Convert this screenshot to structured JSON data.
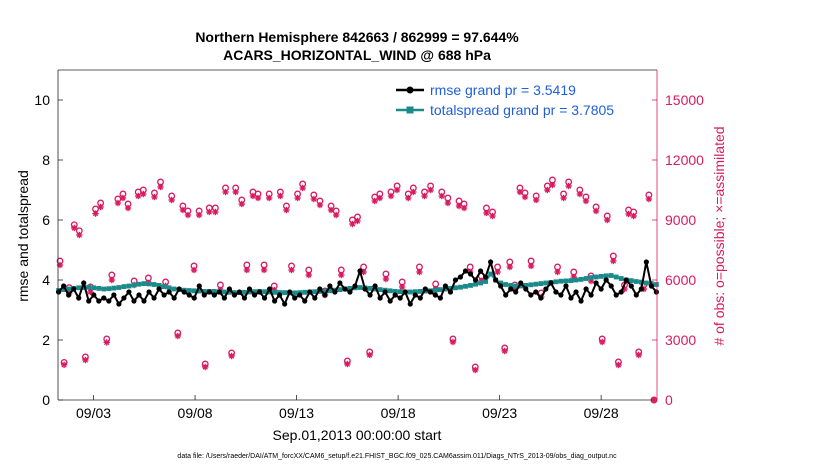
{
  "chart_data": {
    "type": "line",
    "title": "Northern Hemisphere 842663 / 862999 = 97.644%",
    "subtitle": "ACARS_HORIZONTAL_WIND @ 688 hPa",
    "xlabel": "Sep.01,2013 00:00:00 start",
    "ylabel_left": "rmse and totalspread",
    "ylabel_right": "# of obs: o=possible; ×=assimilated",
    "footer": "data file: /Users/raeder/DAI/ATM_forcXX/CAM6_setup/f.e21.FHIST_BGC.f09_025.CAM6assim.011/Diags_NTrS_2013-09/obs_diag_output.nc",
    "x_ticks": [
      {
        "x": 3,
        "label": "09/03"
      },
      {
        "x": 8,
        "label": "09/08"
      },
      {
        "x": 13,
        "label": "09/13"
      },
      {
        "x": 18,
        "label": "09/18"
      },
      {
        "x": 23,
        "label": "09/23"
      },
      {
        "x": 28,
        "label": "09/28"
      }
    ],
    "xlim": [
      1.25,
      30.75
    ],
    "ylim_left": [
      0,
      11
    ],
    "ylim_right": [
      0,
      16500
    ],
    "yticks_left": [
      "0",
      "2",
      "4",
      "6",
      "8",
      "10"
    ],
    "yticks_right": [
      "0",
      "3000",
      "6000",
      "9000",
      "12000",
      "15000"
    ],
    "colors": {
      "rmse": "#000000",
      "spread": "#1a8a8a",
      "obs": "#d81b60",
      "legend_text": "#1f5fd6"
    },
    "series": [
      {
        "name": "rmse grand pr = 3.5419",
        "key": "rmse",
        "axis": "left",
        "values": [
          3.6,
          3.8,
          3.5,
          3.7,
          3.4,
          3.9,
          3.3,
          3.5,
          3.3,
          3.4,
          3.3,
          3.5,
          3.2,
          3.4,
          3.6,
          3.3,
          3.5,
          3.3,
          3.6,
          3.4,
          3.7,
          3.5,
          3.6,
          3.4,
          3.7,
          3.6,
          3.5,
          3.4,
          3.8,
          3.5,
          3.6,
          3.5,
          3.6,
          3.4,
          3.7,
          3.5,
          3.6,
          3.4,
          3.7,
          3.5,
          3.6,
          3.4,
          3.7,
          3.3,
          3.5,
          3.2,
          3.6,
          3.4,
          3.5,
          3.3,
          3.6,
          3.4,
          3.7,
          3.5,
          3.8,
          3.6,
          3.9,
          3.7,
          3.6,
          3.8,
          4.3,
          3.7,
          3.5,
          3.8,
          3.4,
          3.6,
          3.3,
          3.5,
          3.4,
          3.6,
          3.2,
          3.5,
          3.4,
          3.7,
          3.6,
          3.5,
          3.4,
          3.8,
          3.6,
          4.0,
          4.1,
          4.3,
          4.2,
          4.0,
          4.3,
          4.1,
          4.6,
          4.0,
          3.8,
          3.5,
          3.7,
          3.6,
          3.9,
          3.7,
          3.5,
          3.6,
          3.4,
          3.7,
          3.9,
          3.6,
          3.5,
          3.8,
          3.4,
          3.6,
          3.3,
          3.7,
          3.5,
          3.9,
          3.7,
          4.0,
          3.8,
          3.5,
          3.6,
          4.0,
          3.8,
          3.5,
          3.7,
          4.6,
          3.8,
          3.6
        ]
      },
      {
        "name": "totalspread grand pr = 3.7805",
        "key": "spread",
        "axis": "left",
        "values": [
          3.65,
          3.68,
          3.7,
          3.72,
          3.74,
          3.75,
          3.76,
          3.74,
          3.72,
          3.7,
          3.71,
          3.73,
          3.75,
          3.78,
          3.8,
          3.83,
          3.86,
          3.88,
          3.87,
          3.85,
          3.82,
          3.78,
          3.74,
          3.7,
          3.68,
          3.66,
          3.65,
          3.64,
          3.63,
          3.62,
          3.62,
          3.62,
          3.61,
          3.6,
          3.59,
          3.58,
          3.58,
          3.59,
          3.6,
          3.61,
          3.62,
          3.61,
          3.6,
          3.59,
          3.58,
          3.58,
          3.57,
          3.57,
          3.58,
          3.59,
          3.6,
          3.61,
          3.62,
          3.63,
          3.64,
          3.66,
          3.68,
          3.7,
          3.72,
          3.74,
          3.75,
          3.74,
          3.72,
          3.7,
          3.68,
          3.66,
          3.64,
          3.62,
          3.61,
          3.6,
          3.6,
          3.61,
          3.62,
          3.63,
          3.64,
          3.66,
          3.68,
          3.7,
          3.72,
          3.74,
          3.76,
          3.79,
          3.82,
          3.86,
          3.9,
          3.95,
          4.2,
          4.0,
          3.9,
          3.85,
          3.82,
          3.8,
          3.8,
          3.82,
          3.84,
          3.86,
          3.88,
          3.9,
          3.92,
          3.94,
          3.96,
          3.97,
          3.98,
          4.0,
          4.02,
          4.05,
          4.08,
          4.1,
          4.12,
          4.14,
          4.15,
          4.1,
          4.05,
          4.0,
          3.98,
          3.95,
          3.93,
          3.9,
          3.88,
          3.85
        ]
      }
    ],
    "obs": [
      {
        "x": 1.35,
        "poss": 6950,
        "assim": 6750
      },
      {
        "x": 1.55,
        "poss": 1880,
        "assim": 1760
      },
      {
        "x": 1.8,
        "poss": 5620,
        "assim": 5350
      },
      {
        "x": 2.05,
        "poss": 8760,
        "assim": 8600
      },
      {
        "x": 2.3,
        "poss": 8460,
        "assim": 8250
      },
      {
        "x": 2.6,
        "poss": 2150,
        "assim": 2000
      },
      {
        "x": 2.85,
        "poss": 5650,
        "assim": 5400
      },
      {
        "x": 3.1,
        "poss": 9550,
        "assim": 9320
      },
      {
        "x": 3.35,
        "poss": 9850,
        "assim": 9650
      },
      {
        "x": 3.65,
        "poss": 3050,
        "assim": 2880
      },
      {
        "x": 3.9,
        "poss": 6250,
        "assim": 6000
      },
      {
        "x": 4.2,
        "poss": 10050,
        "assim": 9850
      },
      {
        "x": 4.45,
        "poss": 10300,
        "assim": 10100
      },
      {
        "x": 4.7,
        "poss": 9800,
        "assim": 9600
      },
      {
        "x": 5.0,
        "poss": 5950,
        "assim": 5750
      },
      {
        "x": 5.2,
        "poss": 10400,
        "assim": 10200
      },
      {
        "x": 5.45,
        "poss": 10500,
        "assim": 10300
      },
      {
        "x": 5.7,
        "poss": 6100,
        "assim": 5850
      },
      {
        "x": 6.0,
        "poss": 10350,
        "assim": 10150
      },
      {
        "x": 6.3,
        "poss": 10900,
        "assim": 10650
      },
      {
        "x": 6.55,
        "poss": 5900,
        "assim": 5700
      },
      {
        "x": 6.85,
        "poss": 10200,
        "assim": 10000
      },
      {
        "x": 7.15,
        "poss": 3350,
        "assim": 3200
      },
      {
        "x": 7.4,
        "poss": 9700,
        "assim": 9500
      },
      {
        "x": 7.65,
        "poss": 9450,
        "assim": 9250
      },
      {
        "x": 7.95,
        "poss": 6700,
        "assim": 6500
      },
      {
        "x": 8.2,
        "poss": 9450,
        "assim": 9250
      },
      {
        "x": 8.5,
        "poss": 1800,
        "assim": 1650
      },
      {
        "x": 8.7,
        "poss": 9600,
        "assim": 9400
      },
      {
        "x": 9.0,
        "poss": 9600,
        "assim": 9400
      },
      {
        "x": 9.25,
        "poss": 5750,
        "assim": 5500
      },
      {
        "x": 9.5,
        "poss": 10600,
        "assim": 10400
      },
      {
        "x": 9.8,
        "poss": 2350,
        "assim": 2200
      },
      {
        "x": 10.0,
        "poss": 10600,
        "assim": 10400
      },
      {
        "x": 10.3,
        "poss": 10000,
        "assim": 9800
      },
      {
        "x": 10.55,
        "poss": 6750,
        "assim": 6500
      },
      {
        "x": 10.85,
        "poss": 10400,
        "assim": 10200
      },
      {
        "x": 11.1,
        "poss": 10300,
        "assim": 10100
      },
      {
        "x": 11.4,
        "poss": 6750,
        "assim": 6500
      },
      {
        "x": 11.65,
        "poss": 10300,
        "assim": 10100
      },
      {
        "x": 11.9,
        "poss": 5700,
        "assim": 5500
      },
      {
        "x": 12.2,
        "poss": 10400,
        "assim": 10200
      },
      {
        "x": 12.5,
        "poss": 9700,
        "assim": 9500
      },
      {
        "x": 12.75,
        "poss": 6700,
        "assim": 6500
      },
      {
        "x": 13.05,
        "poss": 10300,
        "assim": 10100
      },
      {
        "x": 13.3,
        "poss": 10800,
        "assim": 10600
      },
      {
        "x": 13.6,
        "poss": 6500,
        "assim": 6250
      },
      {
        "x": 13.85,
        "poss": 10250,
        "assim": 10050
      },
      {
        "x": 14.15,
        "poss": 9950,
        "assim": 9750
      },
      {
        "x": 14.4,
        "poss": 5450,
        "assim": 5250
      },
      {
        "x": 14.7,
        "poss": 9700,
        "assim": 9500
      },
      {
        "x": 14.95,
        "poss": 9450,
        "assim": 9250
      },
      {
        "x": 15.2,
        "poss": 6500,
        "assim": 6250
      },
      {
        "x": 15.5,
        "poss": 1950,
        "assim": 1800
      },
      {
        "x": 15.75,
        "poss": 9000,
        "assim": 8800
      },
      {
        "x": 16.0,
        "poss": 9150,
        "assim": 8950
      },
      {
        "x": 16.3,
        "poss": 6650,
        "assim": 6400
      },
      {
        "x": 16.6,
        "poss": 2400,
        "assim": 2250
      },
      {
        "x": 16.85,
        "poss": 10150,
        "assim": 9950
      },
      {
        "x": 17.1,
        "poss": 10300,
        "assim": 10100
      },
      {
        "x": 17.4,
        "poss": 6300,
        "assim": 6050
      },
      {
        "x": 17.65,
        "poss": 10400,
        "assim": 10200
      },
      {
        "x": 17.95,
        "poss": 10700,
        "assim": 10500
      },
      {
        "x": 18.2,
        "poss": 5900,
        "assim": 5650
      },
      {
        "x": 18.5,
        "poss": 10300,
        "assim": 10100
      },
      {
        "x": 18.75,
        "poss": 10600,
        "assim": 10400
      },
      {
        "x": 19.05,
        "poss": 6650,
        "assim": 6400
      },
      {
        "x": 19.3,
        "poss": 10400,
        "assim": 10200
      },
      {
        "x": 19.6,
        "poss": 10700,
        "assim": 10500
      },
      {
        "x": 19.85,
        "poss": 5800,
        "assim": 5550
      },
      {
        "x": 20.15,
        "poss": 10400,
        "assim": 10200
      },
      {
        "x": 20.45,
        "poss": 10100,
        "assim": 9850
      },
      {
        "x": 20.7,
        "poss": 3050,
        "assim": 2900
      },
      {
        "x": 21.0,
        "poss": 9950,
        "assim": 9700
      },
      {
        "x": 21.25,
        "poss": 9800,
        "assim": 9600
      },
      {
        "x": 21.55,
        "poss": 6650,
        "assim": 6400
      },
      {
        "x": 21.8,
        "poss": 1650,
        "assim": 1500
      },
      {
        "x": 22.1,
        "poss": 6200,
        "assim": 5950
      },
      {
        "x": 22.35,
        "poss": 9600,
        "assim": 9350
      },
      {
        "x": 22.65,
        "poss": 9400,
        "assim": 9200
      },
      {
        "x": 22.9,
        "poss": 6650,
        "assim": 6400
      },
      {
        "x": 23.25,
        "poss": 2600,
        "assim": 2450
      },
      {
        "x": 23.5,
        "poss": 6900,
        "assim": 6650
      },
      {
        "x": 23.75,
        "poss": 5750,
        "assim": 5550
      },
      {
        "x": 24.0,
        "poss": 10600,
        "assim": 10400
      },
      {
        "x": 24.25,
        "poss": 10350,
        "assim": 10150
      },
      {
        "x": 24.55,
        "poss": 6950,
        "assim": 6700
      },
      {
        "x": 24.8,
        "poss": 10200,
        "assim": 10000
      },
      {
        "x": 25.05,
        "poss": 5350,
        "assim": 5150
      },
      {
        "x": 25.35,
        "poss": 10700,
        "assim": 10500
      },
      {
        "x": 25.6,
        "poss": 11000,
        "assim": 10750
      },
      {
        "x": 25.85,
        "poss": 6650,
        "assim": 6400
      },
      {
        "x": 26.15,
        "poss": 10300,
        "assim": 10100
      },
      {
        "x": 26.4,
        "poss": 10900,
        "assim": 10700
      },
      {
        "x": 26.65,
        "poss": 6400,
        "assim": 6150
      },
      {
        "x": 26.95,
        "poss": 10500,
        "assim": 10300
      },
      {
        "x": 27.25,
        "poss": 10150,
        "assim": 9950
      },
      {
        "x": 27.5,
        "poss": 6200,
        "assim": 5950
      },
      {
        "x": 27.75,
        "poss": 9650,
        "assim": 9450
      },
      {
        "x": 28.05,
        "poss": 3050,
        "assim": 2900
      },
      {
        "x": 28.3,
        "poss": 9200,
        "assim": 9000
      },
      {
        "x": 28.6,
        "poss": 7200,
        "assim": 6950
      },
      {
        "x": 28.85,
        "poss": 1900,
        "assim": 1750
      },
      {
        "x": 29.15,
        "poss": 5750,
        "assim": 5550
      },
      {
        "x": 29.35,
        "poss": 9500,
        "assim": 9300
      },
      {
        "x": 29.6,
        "poss": 9400,
        "assim": 9200
      },
      {
        "x": 29.85,
        "poss": 2400,
        "assim": 2250
      },
      {
        "x": 30.1,
        "poss": 5750,
        "assim": 5550
      },
      {
        "x": 30.35,
        "poss": 10250,
        "assim": 10050
      },
      {
        "x": 30.6,
        "poss": 0,
        "assim": 0
      }
    ]
  }
}
